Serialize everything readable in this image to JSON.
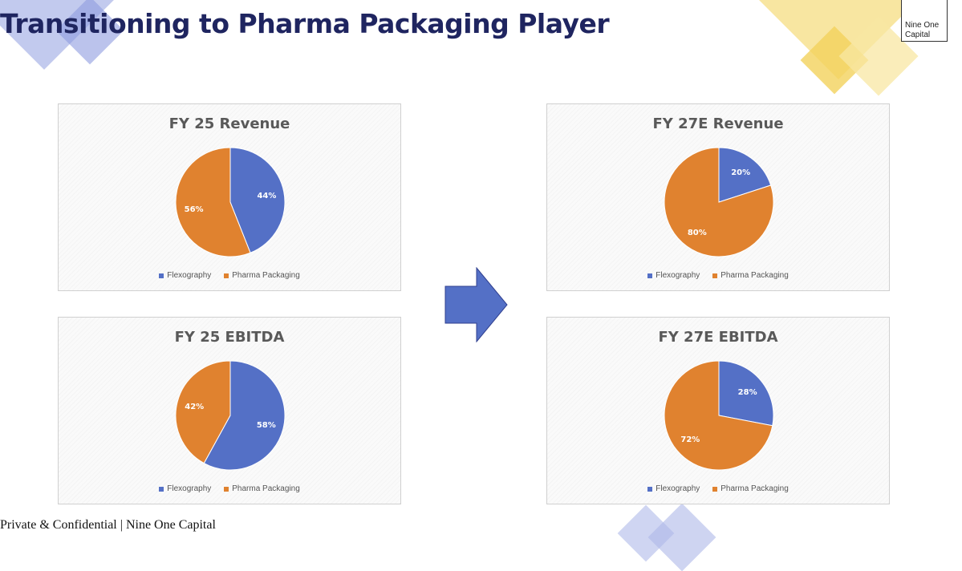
{
  "page": {
    "title": "Transitioning to Pharma Packaging Player",
    "logo_line1": "Nine One",
    "logo_line2": "Capital",
    "footer": "Private & Confidential | Nine One Capital"
  },
  "colors": {
    "flexography": "#5470c6",
    "pharma_packaging": "#e0822f",
    "title": "#1f2560",
    "arrow": "#5470c6"
  },
  "chart_data": [
    {
      "type": "pie",
      "title": "FY 25 Revenue",
      "labels": [
        "Flexography",
        "Pharma Packaging"
      ],
      "values": [
        44,
        56
      ],
      "value_labels": [
        "44%",
        "56%"
      ],
      "legend": "bottom"
    },
    {
      "type": "pie",
      "title": "FY 25 EBITDA",
      "labels": [
        "Flexography",
        "Pharma Packaging"
      ],
      "values": [
        58,
        42
      ],
      "value_labels": [
        "58%",
        "42%"
      ],
      "legend": "bottom"
    },
    {
      "type": "pie",
      "title": "FY 27E Revenue",
      "labels": [
        "Flexography",
        "Pharma Packaging"
      ],
      "values": [
        20,
        80
      ],
      "value_labels": [
        "20%",
        "80%"
      ],
      "legend": "bottom"
    },
    {
      "type": "pie",
      "title": "FY 27E EBITDA",
      "labels": [
        "Flexography",
        "Pharma Packaging"
      ],
      "values": [
        28,
        72
      ],
      "value_labels": [
        "28%",
        "72%"
      ],
      "legend": "bottom"
    }
  ]
}
